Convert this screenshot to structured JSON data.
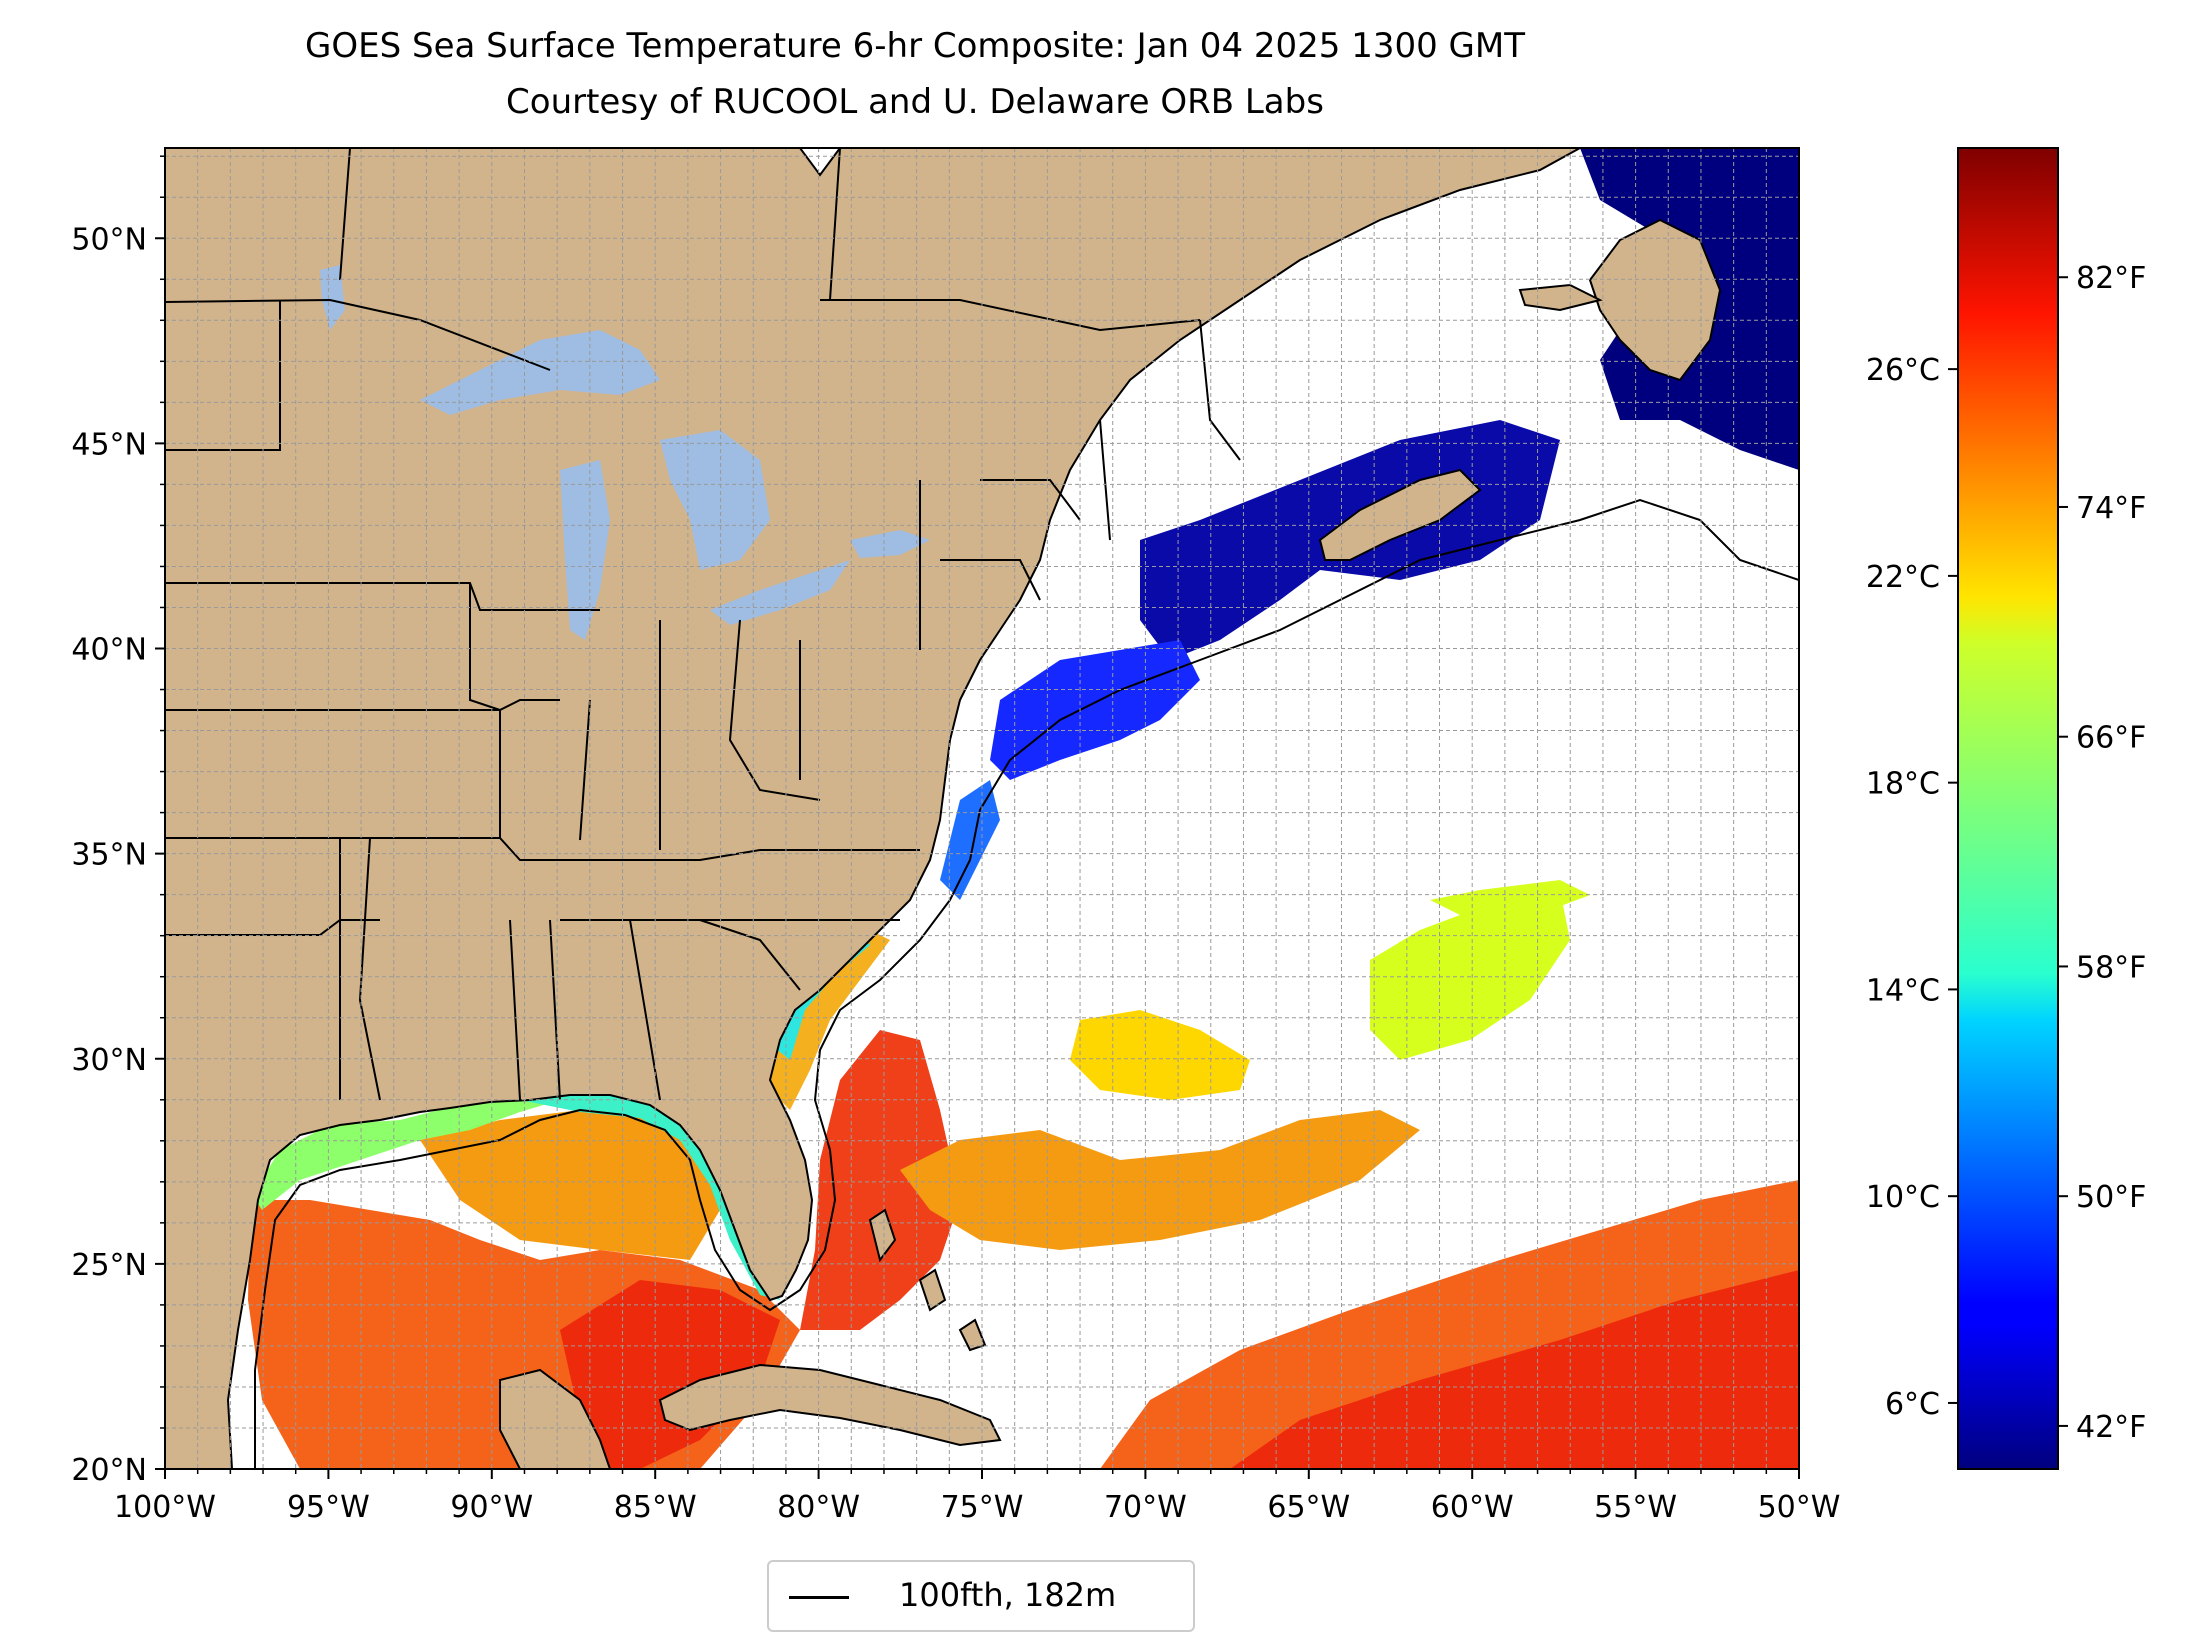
{
  "title": {
    "line1": "GOES Sea Surface Temperature 6-hr Composite: Jan 04 2025 1300 GMT",
    "line2": "Courtesy of RUCOOL and U. Delaware ORB Labs"
  },
  "map": {
    "lon_range": [
      -100,
      -50
    ],
    "lat_range": [
      20,
      52.2
    ],
    "lon_ticks": [
      "100°W",
      "95°W",
      "90°W",
      "85°W",
      "80°W",
      "75°W",
      "70°W",
      "65°W",
      "60°W",
      "55°W",
      "50°W"
    ],
    "lat_ticks": [
      "20°N",
      "25°N",
      "30°N",
      "35°N",
      "40°N",
      "45°N",
      "50°N"
    ],
    "gridlines": "dashed, 1° spacing",
    "colors": {
      "land": "#d2b48c",
      "lakes": "#9fbde3",
      "no_data": "#ffffff",
      "coastline": "#000000"
    }
  },
  "colorbar": {
    "colormap": "jet",
    "celsius_ticks": [
      "6°C",
      "10°C",
      "14°C",
      "18°C",
      "22°C",
      "26°C"
    ],
    "fahrenheit_ticks": [
      "42°F",
      "50°F",
      "58°F",
      "66°F",
      "74°F",
      "82°F"
    ],
    "range_f": [
      40.5,
      86.5
    ]
  },
  "legend": {
    "label": "100fth, 182m",
    "line_color": "#000000",
    "placement": "bottom-center"
  }
}
